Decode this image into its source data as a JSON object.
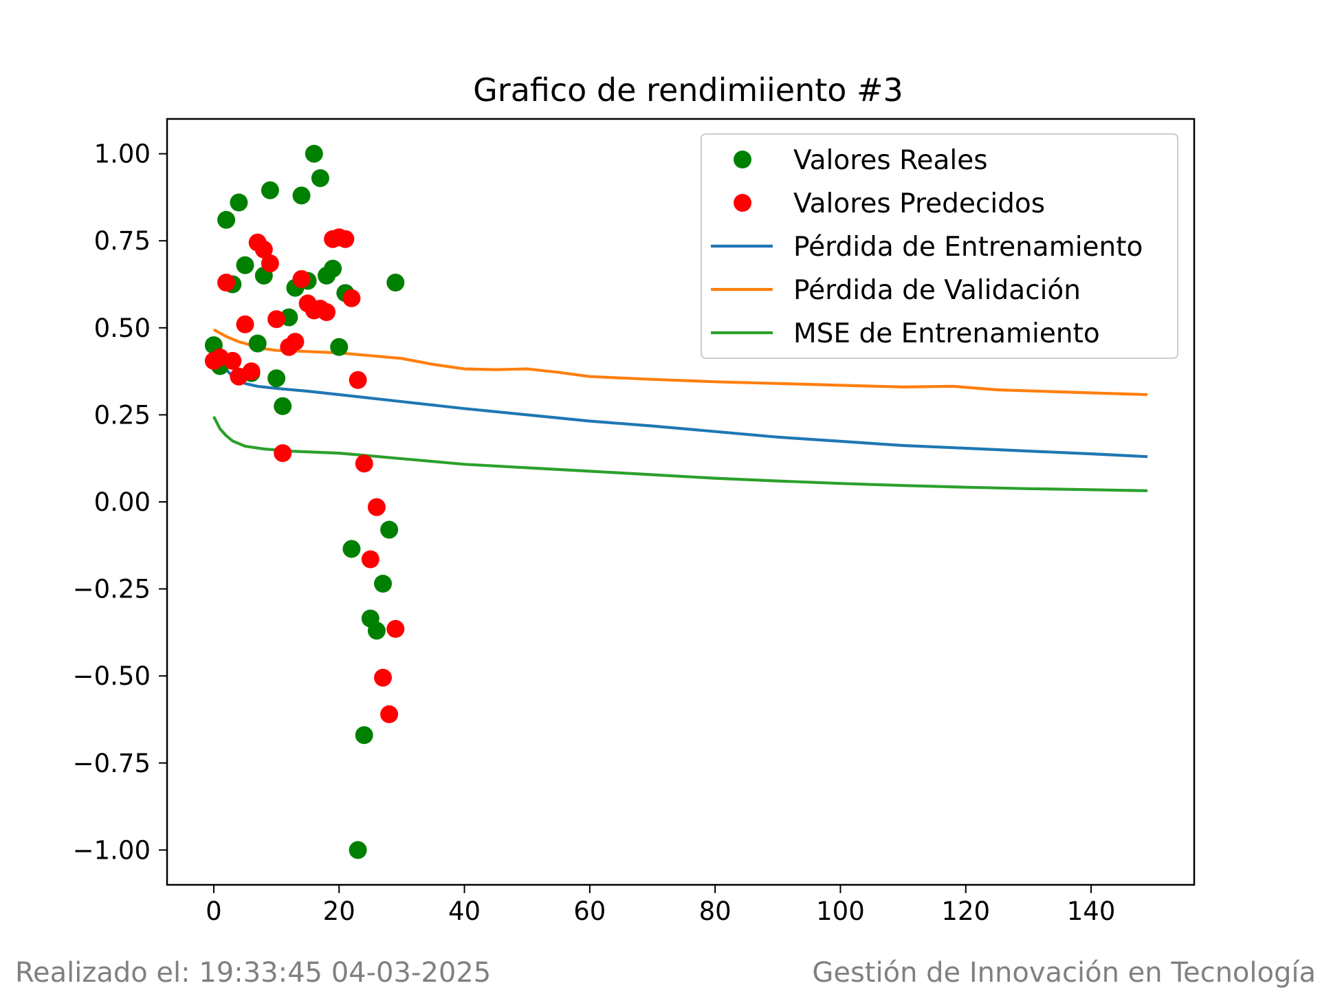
{
  "chart_data": {
    "type": "scatter",
    "title": "Grafico de rendimiiento #3",
    "xlabel": "",
    "ylabel": "",
    "xlim": [
      -7.45,
      156.45
    ],
    "ylim": [
      -1.1,
      1.1
    ],
    "xticks": [
      0,
      20,
      40,
      60,
      80,
      100,
      120,
      140
    ],
    "yticks": [
      1.0,
      0.75,
      0.5,
      0.25,
      0.0,
      -0.25,
      -0.5,
      -0.75,
      -1.0
    ],
    "xtick_labels": [
      "0",
      "20",
      "40",
      "60",
      "80",
      "100",
      "120",
      "140"
    ],
    "ytick_labels": [
      "1.00",
      "0.75",
      "0.50",
      "0.25",
      "0.00",
      "−0.25",
      "−0.50",
      "−0.75",
      "−1.00"
    ],
    "legend": {
      "placement": "upper right"
    },
    "scatter_series": [
      {
        "name": "Valores Reales",
        "color": "#008000",
        "points": [
          [
            0,
            0.45
          ],
          [
            1,
            0.39
          ],
          [
            2,
            0.81
          ],
          [
            3,
            0.625
          ],
          [
            4,
            0.86
          ],
          [
            5,
            0.68
          ],
          [
            6,
            0.37
          ],
          [
            7,
            0.455
          ],
          [
            8,
            0.65
          ],
          [
            9,
            0.895
          ],
          [
            10,
            0.355
          ],
          [
            11,
            0.275
          ],
          [
            12,
            0.53
          ],
          [
            13,
            0.615
          ],
          [
            14,
            0.88
          ],
          [
            15,
            0.635
          ],
          [
            16,
            1.0
          ],
          [
            17,
            0.93
          ],
          [
            18,
            0.65
          ],
          [
            19,
            0.67
          ],
          [
            20,
            0.445
          ],
          [
            21,
            0.6
          ],
          [
            22,
            -0.135
          ],
          [
            23,
            -1.0
          ],
          [
            24,
            -0.67
          ],
          [
            25,
            -0.335
          ],
          [
            26,
            -0.37
          ],
          [
            27,
            -0.235
          ],
          [
            28,
            -0.08
          ],
          [
            29,
            0.63
          ]
        ]
      },
      {
        "name": "Valores Predecidos",
        "color": "#ff0000",
        "points": [
          [
            0,
            0.405
          ],
          [
            1,
            0.415
          ],
          [
            2,
            0.63
          ],
          [
            3,
            0.405
          ],
          [
            4,
            0.36
          ],
          [
            5,
            0.51
          ],
          [
            6,
            0.375
          ],
          [
            7,
            0.745
          ],
          [
            8,
            0.725
          ],
          [
            9,
            0.685
          ],
          [
            10,
            0.525
          ],
          [
            11,
            0.14
          ],
          [
            12,
            0.445
          ],
          [
            13,
            0.46
          ],
          [
            14,
            0.64
          ],
          [
            15,
            0.57
          ],
          [
            16,
            0.55
          ],
          [
            17,
            0.555
          ],
          [
            18,
            0.545
          ],
          [
            19,
            0.755
          ],
          [
            20,
            0.76
          ],
          [
            21,
            0.755
          ],
          [
            22,
            0.585
          ],
          [
            23,
            0.35
          ],
          [
            24,
            0.11
          ],
          [
            25,
            -0.165
          ],
          [
            26,
            -0.015
          ],
          [
            27,
            -0.505
          ],
          [
            28,
            -0.61
          ],
          [
            29,
            -0.365
          ]
        ]
      }
    ],
    "line_series": [
      {
        "name": "Pérdida de Entrenamiento",
        "color": "#1f77b4",
        "points": [
          [
            0,
            0.42
          ],
          [
            1,
            0.4
          ],
          [
            2,
            0.38
          ],
          [
            3,
            0.36
          ],
          [
            4,
            0.35
          ],
          [
            5,
            0.34
          ],
          [
            7,
            0.332
          ],
          [
            10,
            0.326
          ],
          [
            15,
            0.318
          ],
          [
            20,
            0.308
          ],
          [
            30,
            0.288
          ],
          [
            40,
            0.268
          ],
          [
            50,
            0.25
          ],
          [
            60,
            0.232
          ],
          [
            70,
            0.218
          ],
          [
            80,
            0.202
          ],
          [
            90,
            0.186
          ],
          [
            100,
            0.174
          ],
          [
            110,
            0.162
          ],
          [
            120,
            0.154
          ],
          [
            130,
            0.146
          ],
          [
            140,
            0.138
          ],
          [
            149,
            0.13
          ]
        ]
      },
      {
        "name": "Pérdida de Validación",
        "color": "#ff7f0e",
        "points": [
          [
            0,
            0.495
          ],
          [
            2,
            0.475
          ],
          [
            4,
            0.46
          ],
          [
            6,
            0.45
          ],
          [
            8,
            0.44
          ],
          [
            10,
            0.435
          ],
          [
            15,
            0.432
          ],
          [
            20,
            0.428
          ],
          [
            25,
            0.42
          ],
          [
            30,
            0.412
          ],
          [
            35,
            0.395
          ],
          [
            40,
            0.382
          ],
          [
            45,
            0.38
          ],
          [
            50,
            0.382
          ],
          [
            55,
            0.372
          ],
          [
            60,
            0.36
          ],
          [
            70,
            0.352
          ],
          [
            80,
            0.345
          ],
          [
            90,
            0.34
          ],
          [
            100,
            0.335
          ],
          [
            110,
            0.33
          ],
          [
            118,
            0.332
          ],
          [
            125,
            0.322
          ],
          [
            135,
            0.316
          ],
          [
            149,
            0.308
          ]
        ]
      },
      {
        "name": "MSE de Entrenamiento",
        "color": "#2ca02c",
        "points": [
          [
            0,
            0.245
          ],
          [
            1,
            0.21
          ],
          [
            2,
            0.19
          ],
          [
            3,
            0.175
          ],
          [
            5,
            0.16
          ],
          [
            8,
            0.152
          ],
          [
            12,
            0.146
          ],
          [
            20,
            0.14
          ],
          [
            30,
            0.124
          ],
          [
            40,
            0.108
          ],
          [
            50,
            0.098
          ],
          [
            60,
            0.088
          ],
          [
            70,
            0.078
          ],
          [
            80,
            0.068
          ],
          [
            90,
            0.06
          ],
          [
            100,
            0.053
          ],
          [
            110,
            0.047
          ],
          [
            120,
            0.042
          ],
          [
            130,
            0.038
          ],
          [
            140,
            0.035
          ],
          [
            149,
            0.032
          ]
        ]
      }
    ]
  },
  "footer": {
    "left": "Realizado el: 19:33:45 04-03-2025",
    "right": "Gestión de Innovación en Tecnología"
  }
}
